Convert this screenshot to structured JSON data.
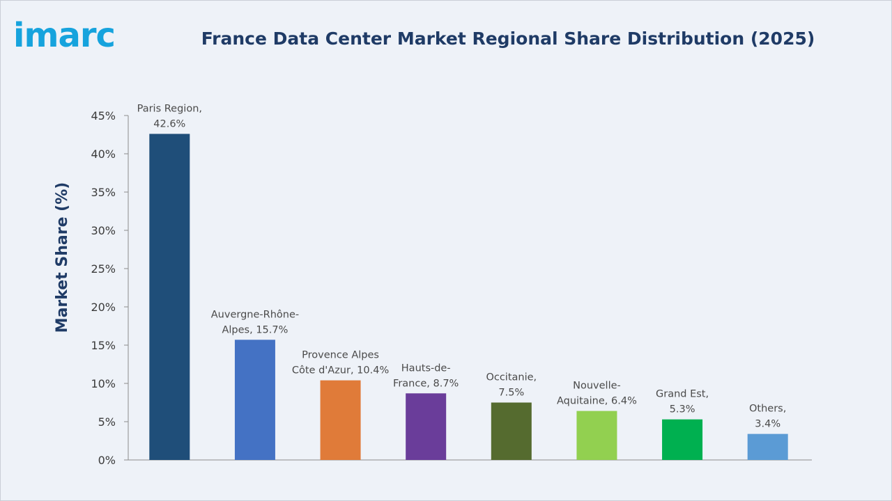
{
  "brand": {
    "logo_text": "imarc"
  },
  "chart_data": {
    "type": "bar",
    "title": "France Data Center Market Regional Share Distribution (2025)",
    "ylabel": "Market Share (%)",
    "xlabel": "",
    "ylim": [
      0,
      45
    ],
    "yticks": [
      0,
      5,
      10,
      15,
      20,
      25,
      30,
      35,
      40,
      45
    ],
    "ytick_suffix": "%",
    "grid": false,
    "categories": [
      "Paris Region",
      "Auvergne-Rhône-Alpes",
      "Provence Alpes Côte d'Azur",
      "Hauts-de-France",
      "Occitanie",
      "Nouvelle-Aquitaine",
      "Grand Est",
      "Others"
    ],
    "values": [
      42.6,
      15.7,
      10.4,
      8.7,
      7.5,
      6.4,
      5.3,
      3.4
    ],
    "data_labels": [
      [
        "Paris Region,",
        "42.6%"
      ],
      [
        "Auvergne-Rhône-",
        "Alpes, 15.7%"
      ],
      [
        "Provence Alpes",
        "Côte d'Azur, 10.4%"
      ],
      [
        "Hauts-de-",
        "France, 8.7%"
      ],
      [
        "Occitanie,",
        "7.5%"
      ],
      [
        "Nouvelle-",
        "Aquitaine, 6.4%"
      ],
      [
        "Grand Est,",
        "5.3%"
      ],
      [
        "Others,",
        "3.4%"
      ]
    ],
    "colors": [
      "#1f4e79",
      "#4472c4",
      "#e07b39",
      "#6a3d9a",
      "#556b2f",
      "#92d050",
      "#00b050",
      "#5b9bd5"
    ]
  }
}
